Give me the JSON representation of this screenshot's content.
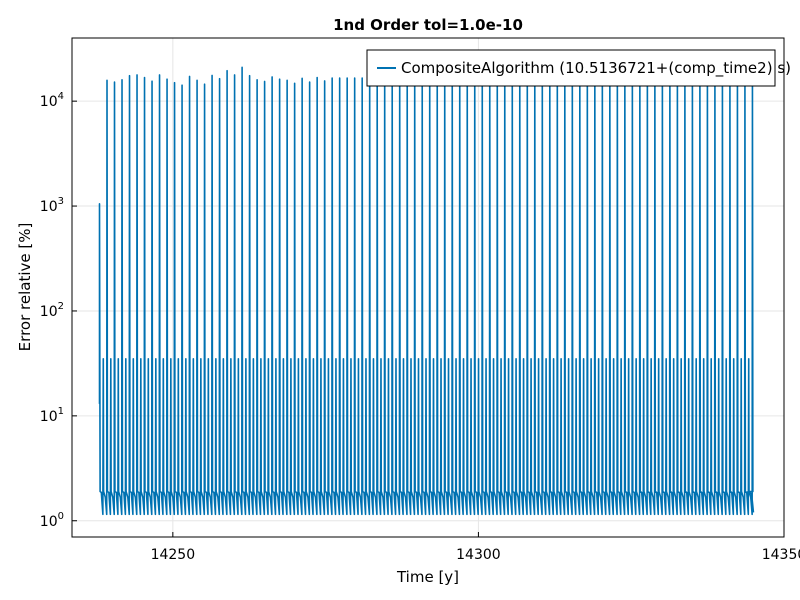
{
  "chart_data": {
    "type": "line",
    "title": "1nd Order tol=1.0e-10",
    "xlabel": "Time [y]",
    "ylabel": "Error relative [%]",
    "xscale": "linear",
    "yscale": "log",
    "xlim": [
      14233.5,
      14350
    ],
    "ylim": [
      0.7,
      40000
    ],
    "xticks": [
      14250,
      14300,
      14350
    ],
    "xtick_labels": [
      "14250",
      "14300",
      "14350"
    ],
    "yticks": [
      1,
      10,
      100,
      1000,
      10000
    ],
    "ytick_labels": [
      {
        "base": "10",
        "exp": "0"
      },
      {
        "base": "10",
        "exp": "1"
      },
      {
        "base": "10",
        "exp": "2"
      },
      {
        "base": "10",
        "exp": "3"
      },
      {
        "base": "10",
        "exp": "4"
      }
    ],
    "grid": true,
    "legend_position": "top-right",
    "color": "#0072b2",
    "series": [
      {
        "name": "CompositeAlgorithm (10.5136721+(comp_time2) s)",
        "cycle": {
          "first_x": 14238.0,
          "period": 1.228,
          "last_x": 14344.1,
          "start_value": 13,
          "first_peak": 1050,
          "baseline_range": [
            1.15,
            1.9
          ],
          "mid_spike": 35,
          "end_value": 1.2
        },
        "peaks": [
          15800,
          15200,
          16000,
          17500,
          17800,
          16800,
          15500,
          17800,
          16200,
          15000,
          14200,
          17200,
          15800,
          14500,
          17600,
          16400,
          19500,
          17800,
          21000,
          17500,
          16000,
          15400,
          17000,
          16200,
          15800,
          14800,
          16500,
          15200,
          16800,
          15600,
          16600,
          16600,
          16600,
          16600,
          16600,
          16600,
          16600,
          16600,
          16600,
          16600,
          16600,
          16600,
          16600,
          16600,
          16600,
          16600,
          16600,
          16600,
          16600,
          16600,
          16600,
          16600,
          16600,
          16600,
          16600,
          16600,
          16600,
          16600,
          16600,
          16600,
          16600,
          16600,
          16600,
          16600,
          16600,
          16600,
          16600,
          16600,
          16600,
          16600,
          16600,
          16600,
          16600,
          16600,
          16600,
          16600,
          16600,
          16600,
          16600,
          16600,
          16600,
          16600,
          16600,
          16600,
          16600,
          16600,
          16600
        ]
      }
    ]
  }
}
